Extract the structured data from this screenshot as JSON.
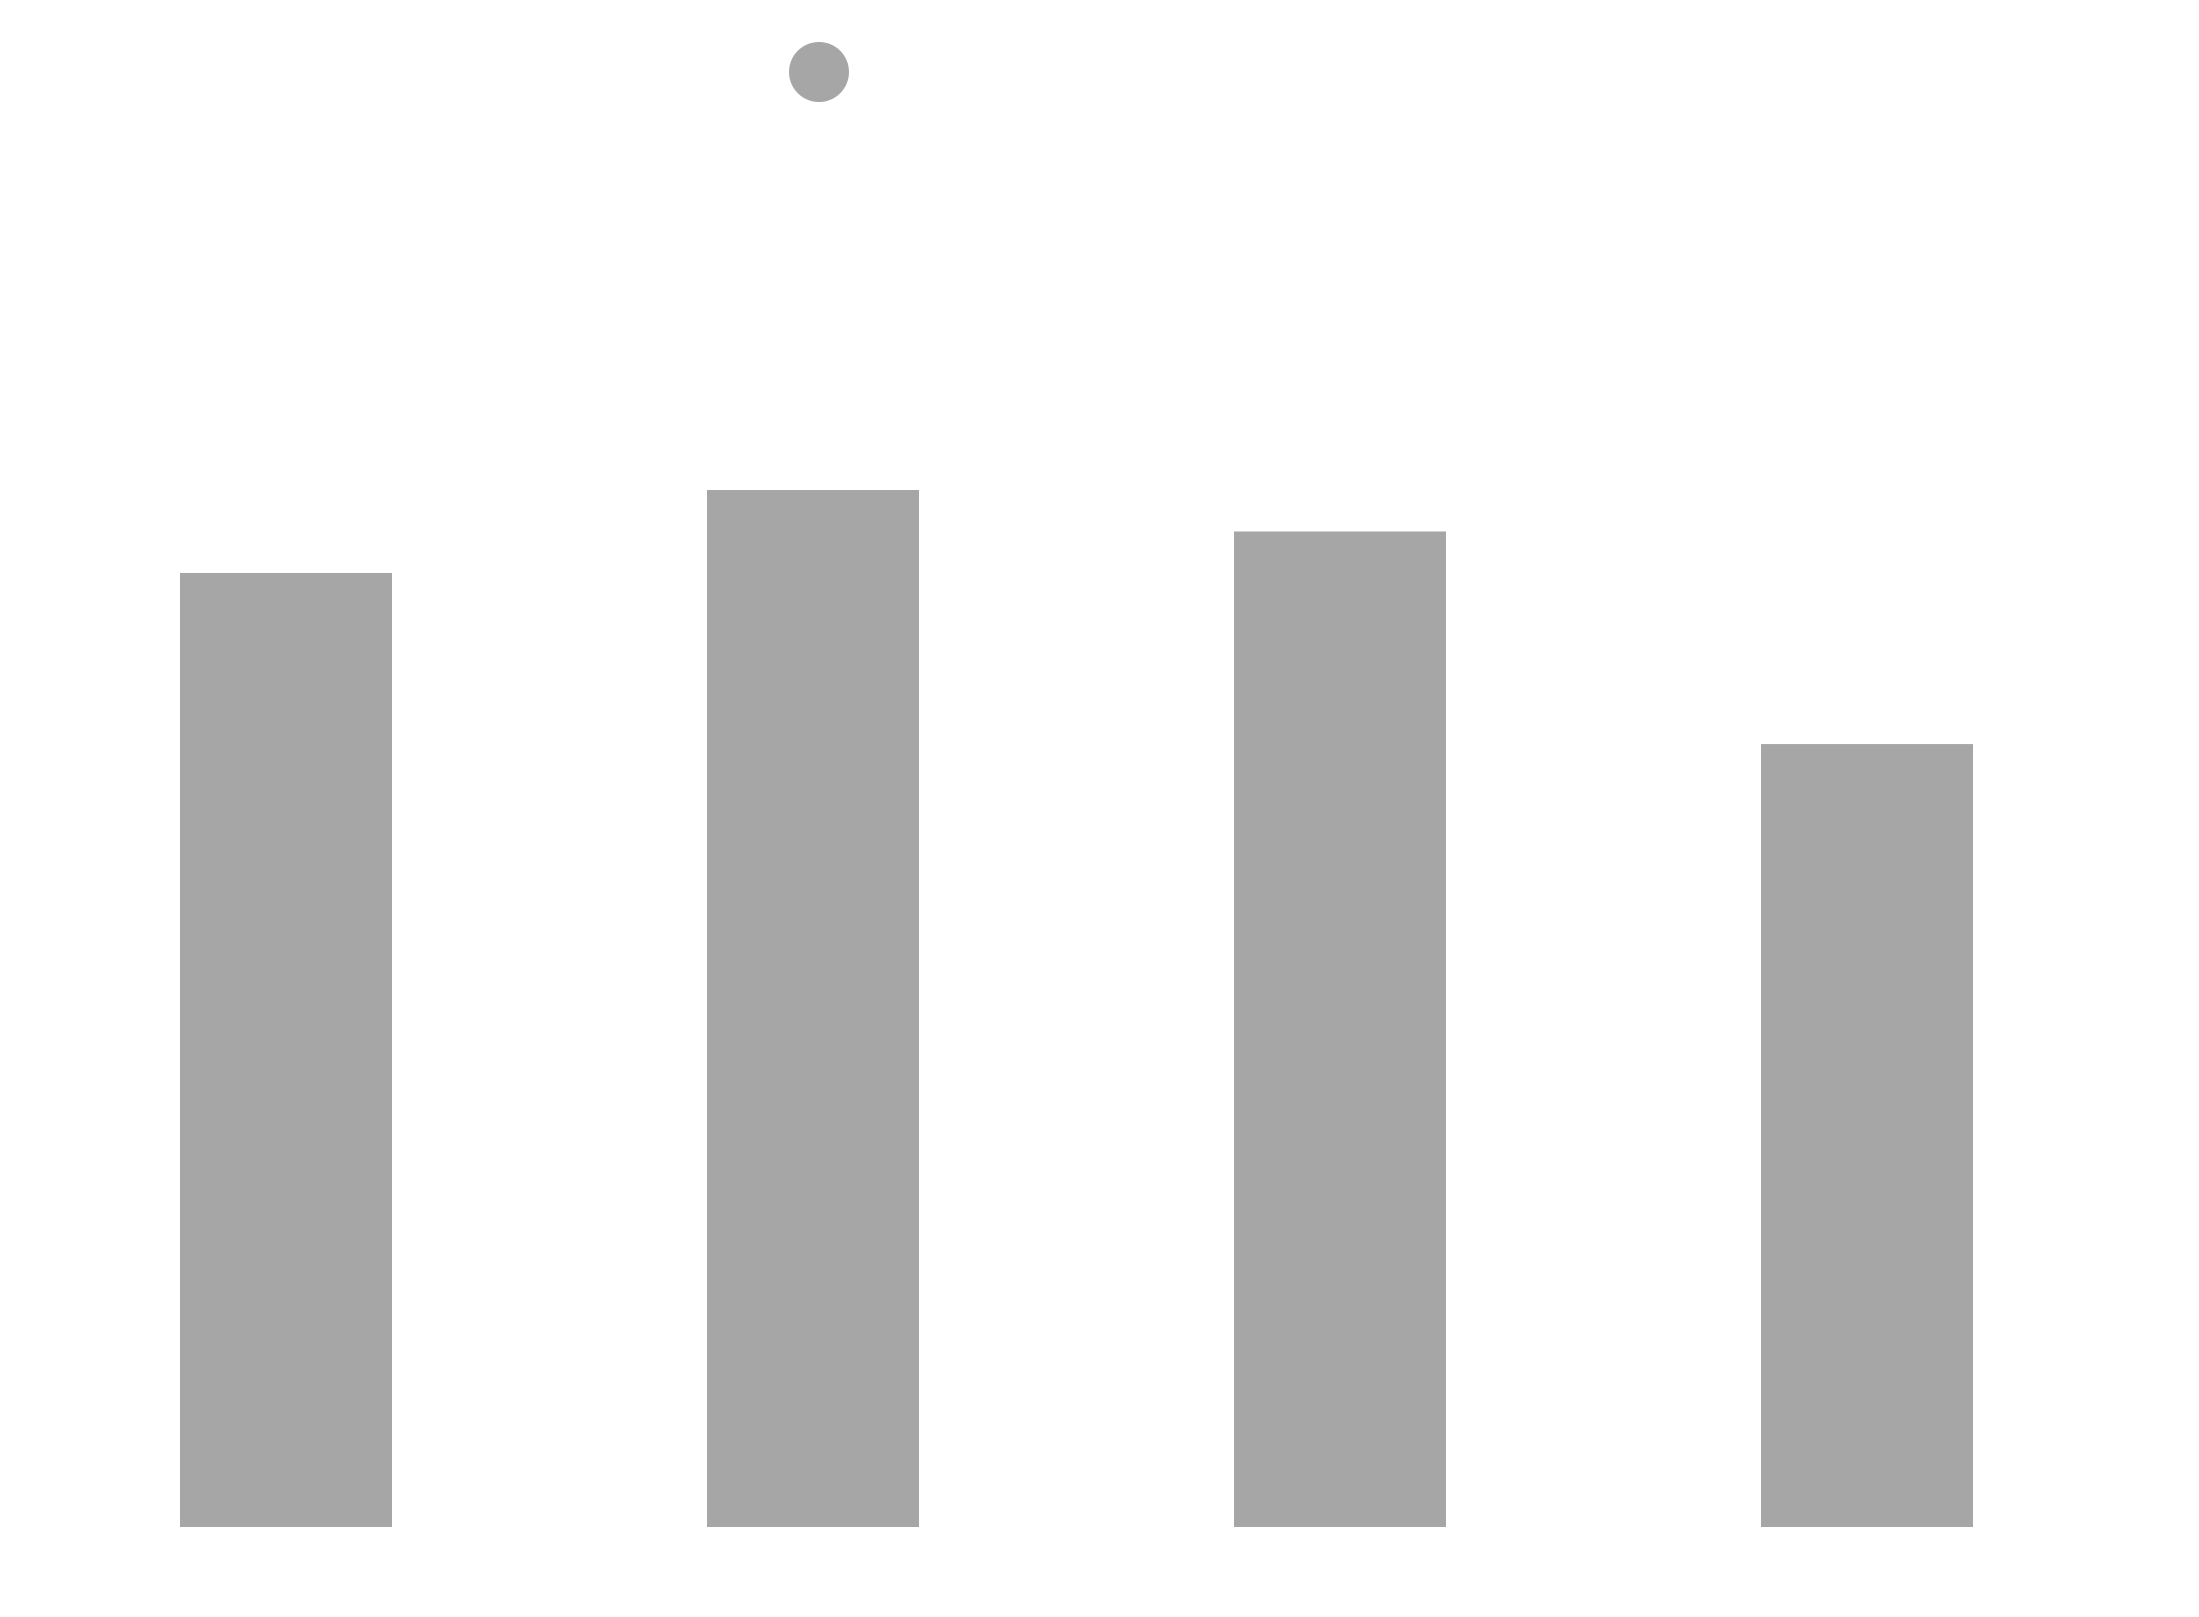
{
  "chart_data": {
    "type": "bar",
    "categories": [
      "",
      "",
      "",
      ""
    ],
    "values": [
      0.92,
      1.0,
      0.96,
      0.755
    ],
    "ylim": [
      0,
      1.0
    ],
    "grid": false,
    "legend_placement": "top",
    "series": [
      {
        "values": [
          0.92,
          1.0,
          0.96,
          0.755
        ]
      }
    ],
    "colors": {
      "bar": "#a6a6a6",
      "legend_marker": "#a6a6a6",
      "background": "#ffffff"
    }
  }
}
